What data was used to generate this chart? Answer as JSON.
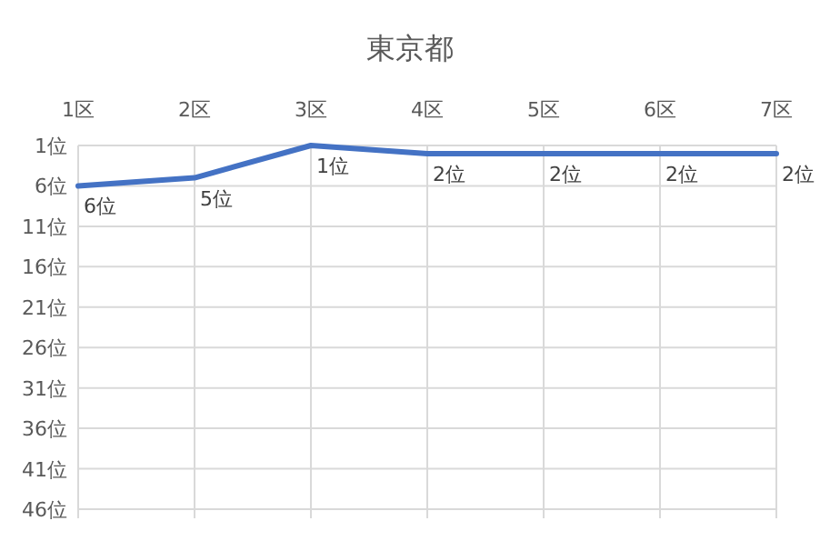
{
  "chart_data": {
    "type": "line",
    "title": "東京都",
    "categories": [
      "1区",
      "2区",
      "3区",
      "4区",
      "5区",
      "6区",
      "7区"
    ],
    "series": [
      {
        "color": "#4472c4",
        "values": [
          6,
          5,
          1,
          2,
          2,
          2,
          2
        ],
        "value_labels": [
          "6位",
          "5位",
          "1位",
          "2位",
          "2位",
          "2位",
          "2位"
        ]
      }
    ],
    "ylim": [
      46,
      1
    ],
    "yticks": [
      {
        "value": 1,
        "label": "1位"
      },
      {
        "value": 6,
        "label": "6位"
      },
      {
        "value": 11,
        "label": "11位"
      },
      {
        "value": 16,
        "label": "16位"
      },
      {
        "value": 21,
        "label": "21位"
      },
      {
        "value": 26,
        "label": "26位"
      },
      {
        "value": 31,
        "label": "31位"
      },
      {
        "value": 36,
        "label": "36位"
      },
      {
        "value": 41,
        "label": "41位"
      },
      {
        "value": 46,
        "label": "46位"
      }
    ],
    "grid": true,
    "marker": "none",
    "line_style": "solid"
  }
}
